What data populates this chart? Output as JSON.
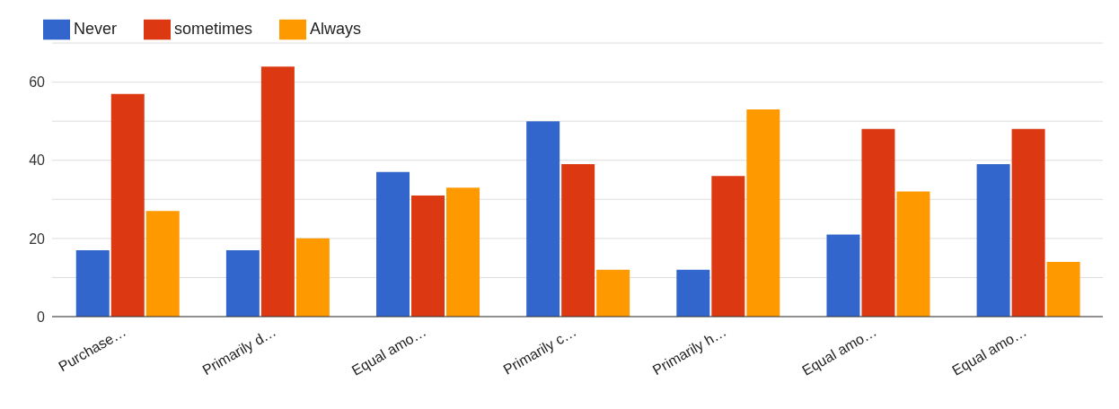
{
  "chart_data": {
    "type": "bar",
    "categories": [
      "Purchase…",
      "Primarily d…",
      "Equal amo…",
      "Primarily c…",
      "Primarily h…",
      "Equal amo…",
      "Equal amo…"
    ],
    "series": [
      {
        "name": "Never",
        "color": "#3366cc",
        "values": [
          17,
          17,
          37,
          50,
          12,
          21,
          39
        ]
      },
      {
        "name": "sometimes",
        "color": "#dc3912",
        "values": [
          57,
          64,
          31,
          39,
          36,
          48,
          48
        ]
      },
      {
        "name": "Always",
        "color": "#ff9900",
        "values": [
          27,
          20,
          33,
          12,
          53,
          32,
          14
        ]
      }
    ],
    "ylim": [
      0,
      70
    ],
    "yticks": [
      0,
      {
        "value": 10,
        "label": null
      },
      20,
      {
        "value": 30,
        "label": null
      },
      40,
      {
        "value": 50,
        "label": null
      },
      60,
      {
        "value": 70,
        "label": null
      }
    ],
    "grid": "y",
    "legend": "top left"
  }
}
